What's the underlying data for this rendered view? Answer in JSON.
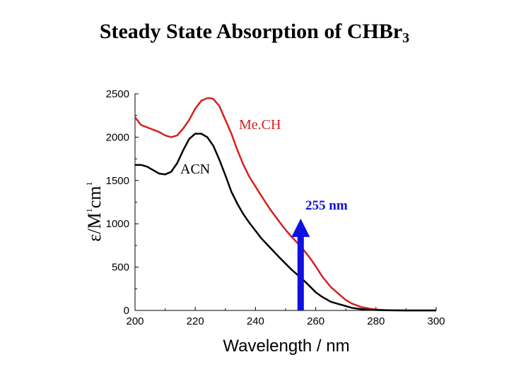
{
  "title_main": "Steady State Absorption of CHBr",
  "title_sub": "3",
  "chart_data": {
    "type": "line",
    "xlabel": "Wavelength / nm",
    "ylabel_parts": {
      "epsilon": "ε",
      "slash": "/",
      "m": "M",
      "sup1": "1",
      "cm": "cm",
      "sup2": "1"
    },
    "xlim": [
      200,
      300
    ],
    "ylim": [
      0,
      2500
    ],
    "xticks": [
      200,
      220,
      240,
      260,
      280,
      300
    ],
    "yticks": [
      0,
      500,
      1000,
      1500,
      2000,
      2500
    ],
    "grid": false,
    "series": [
      {
        "name": "Me.CH",
        "color": "#d42020",
        "x": [
          200,
          202,
          205,
          208,
          210,
          212,
          214,
          216,
          218,
          220,
          222,
          224,
          225,
          226,
          228,
          230,
          232,
          234,
          236,
          238,
          240,
          242,
          245,
          248,
          250,
          252,
          255,
          258,
          260,
          262,
          265,
          268,
          270,
          272,
          275,
          278,
          280,
          282,
          285,
          288,
          290,
          295,
          300
        ],
        "y": [
          2230,
          2140,
          2100,
          2060,
          2020,
          2000,
          2020,
          2100,
          2200,
          2330,
          2420,
          2450,
          2450,
          2440,
          2360,
          2200,
          2040,
          1850,
          1680,
          1540,
          1430,
          1320,
          1160,
          1020,
          930,
          850,
          740,
          610,
          510,
          400,
          270,
          180,
          120,
          80,
          40,
          20,
          10,
          5,
          2,
          1,
          0,
          0,
          0
        ]
      },
      {
        "name": "ACN",
        "color": "#000000",
        "x": [
          200,
          202,
          204,
          206,
          208,
          210,
          212,
          214,
          216,
          218,
          220,
          222,
          224,
          226,
          228,
          230,
          232,
          234,
          236,
          238,
          240,
          242,
          245,
          248,
          250,
          252,
          255,
          258,
          260,
          262,
          265,
          268,
          270,
          272,
          275,
          278,
          280,
          282,
          285,
          290,
          295,
          300
        ],
        "y": [
          1680,
          1680,
          1660,
          1620,
          1580,
          1570,
          1600,
          1700,
          1850,
          1980,
          2040,
          2040,
          2000,
          1900,
          1740,
          1560,
          1370,
          1230,
          1110,
          1010,
          920,
          830,
          720,
          610,
          540,
          470,
          380,
          280,
          210,
          160,
          100,
          70,
          50,
          30,
          15,
          8,
          5,
          3,
          1,
          0,
          0,
          0
        ]
      }
    ],
    "annotations": [
      {
        "type": "arrow",
        "x": 255,
        "y_from": 0,
        "y_to": 1060,
        "color": "#1010e0"
      },
      {
        "type": "text",
        "text": "255 nm",
        "color": "#1010e0"
      }
    ]
  }
}
